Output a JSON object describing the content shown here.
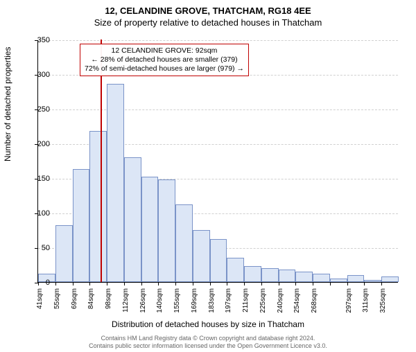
{
  "header": {
    "address": "12, CELANDINE GROVE, THATCHAM, RG18 4EE",
    "subtitle": "Size of property relative to detached houses in Thatcham"
  },
  "chart": {
    "type": "histogram",
    "ylim": [
      0,
      350
    ],
    "ytick_step": 50,
    "yticks": [
      0,
      50,
      100,
      150,
      200,
      250,
      300,
      350
    ],
    "xlabel": "Distribution of detached houses by size in Thatcham",
    "ylabel": "Number of detached properties",
    "bar_fill": "#dce6f6",
    "bar_stroke": "#7a93c8",
    "grid_color": "#d0d0d0",
    "background_color": "#ffffff",
    "categories": [
      "41sqm",
      "55sqm",
      "69sqm",
      "84sqm",
      "98sqm",
      "112sqm",
      "126sqm",
      "140sqm",
      "155sqm",
      "169sqm",
      "183sqm",
      "197sqm",
      "211sqm",
      "225sqm",
      "240sqm",
      "254sqm",
      "268sqm",
      "",
      "297sqm",
      "311sqm",
      "325sqm"
    ],
    "values": [
      12,
      82,
      163,
      218,
      286,
      180,
      152,
      148,
      112,
      75,
      62,
      35,
      23,
      20,
      18,
      15,
      12,
      5,
      10,
      3,
      8
    ],
    "marker": {
      "position_sqm": 92,
      "color": "#c00000"
    },
    "annotation": {
      "border_color": "#c00000",
      "line1": "12 CELANDINE GROVE: 92sqm",
      "line2": "← 28% of detached houses are smaller (379)",
      "line3": "72% of semi-detached houses are larger (979) →"
    }
  },
  "footer": {
    "line1": "Contains HM Land Registry data © Crown copyright and database right 2024.",
    "line2": "Contains public sector information licensed under the Open Government Licence v3.0."
  }
}
